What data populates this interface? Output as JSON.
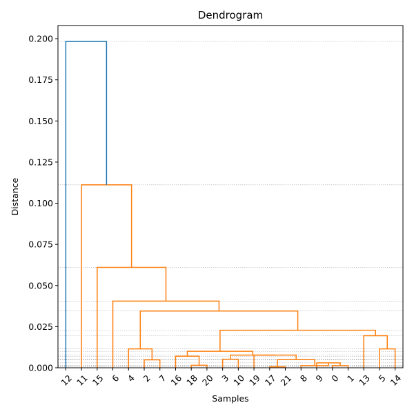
{
  "chart_data": {
    "type": "dendrogram",
    "title": "Dendrogram",
    "xlabel": "Samples",
    "ylabel": "Distance",
    "ylim": [
      0,
      0.208
    ],
    "yticks": [
      0.0,
      0.025,
      0.05,
      0.075,
      0.1,
      0.125,
      0.15,
      0.175,
      0.2
    ],
    "ytick_labels": [
      "0.000",
      "0.025",
      "0.050",
      "0.075",
      "0.100",
      "0.125",
      "0.150",
      "0.175",
      "0.200"
    ],
    "leaves": [
      "12",
      "11",
      "15",
      "6",
      "4",
      "2",
      "7",
      "16",
      "18",
      "20",
      "3",
      "10",
      "19",
      "17",
      "21",
      "8",
      "9",
      "0",
      "1",
      "13",
      "5",
      "14"
    ],
    "colors": {
      "above_threshold": "#1f77b4",
      "cluster": "#ff7f0e",
      "grid": "#b0b0b0"
    },
    "merges": [
      {
        "left": [
          5,
          0
        ],
        "right": [
          6,
          0
        ],
        "height": 0.0048,
        "color": "cluster"
      },
      {
        "left": [
          4,
          0
        ],
        "right": [
          5.5,
          0.0048
        ],
        "height": 0.0115,
        "color": "cluster"
      },
      {
        "left": [
          8,
          0
        ],
        "right": [
          9,
          0
        ],
        "height": 0.0015,
        "color": "cluster"
      },
      {
        "left": [
          7,
          0
        ],
        "right": [
          8.5,
          0.0015
        ],
        "height": 0.007,
        "color": "cluster"
      },
      {
        "left": [
          10,
          0
        ],
        "right": [
          11,
          0
        ],
        "height": 0.0052,
        "color": "cluster"
      },
      {
        "left": [
          13,
          0
        ],
        "right": [
          14,
          0
        ],
        "height": 0.0006,
        "color": "cluster"
      },
      {
        "left": [
          17,
          0
        ],
        "right": [
          18,
          0
        ],
        "height": 0.0013,
        "color": "cluster"
      },
      {
        "left": [
          16,
          0
        ],
        "right": [
          17.5,
          0.0013
        ],
        "height": 0.003,
        "color": "cluster"
      },
      {
        "left": [
          15,
          0
        ],
        "right": [
          16.75,
          0.003
        ],
        "height": 0.0013,
        "color": "cluster"
      },
      {
        "left": [
          13.5,
          0.0006
        ],
        "right": [
          15.875,
          0.0013
        ],
        "height": 0.005,
        "color": "cluster"
      },
      {
        "left": [
          12,
          0
        ],
        "right": [
          14.6875,
          0.005
        ],
        "height": 0.0077,
        "color": "cluster"
      },
      {
        "left": [
          10.5,
          0.0052
        ],
        "right": [
          13.34375,
          0.0077
        ],
        "height": 0.0077,
        "color": "cluster"
      },
      {
        "left": [
          7.75,
          0.007
        ],
        "right": [
          11.921875,
          0.0077
        ],
        "height": 0.01,
        "color": "cluster"
      },
      {
        "left": [
          20,
          0
        ],
        "right": [
          21,
          0
        ],
        "height": 0.0115,
        "color": "cluster"
      },
      {
        "left": [
          19,
          0
        ],
        "right": [
          20.5,
          0.0115
        ],
        "height": 0.0195,
        "color": "cluster"
      },
      {
        "left": [
          9.8359375,
          0.01
        ],
        "right": [
          19.75,
          0.0195
        ],
        "height": 0.0228,
        "color": "cluster"
      },
      {
        "left": [
          4.75,
          0.0115
        ],
        "right": [
          14.79296875,
          0.0228
        ],
        "height": 0.0345,
        "color": "cluster"
      },
      {
        "left": [
          3,
          0
        ],
        "right": [
          9.771484375,
          0.0345
        ],
        "height": 0.0405,
        "color": "cluster"
      },
      {
        "left": [
          2,
          0
        ],
        "right": [
          6.3857421875,
          0.0405
        ],
        "height": 0.061,
        "color": "cluster"
      },
      {
        "left": [
          1,
          0
        ],
        "right": [
          4.19287109375,
          0.061
        ],
        "height": 0.1112,
        "color": "cluster"
      },
      {
        "left": [
          0,
          0
        ],
        "right": [
          2.596435546875,
          0.1112
        ],
        "height": 0.1983,
        "color": "above_threshold"
      }
    ]
  }
}
